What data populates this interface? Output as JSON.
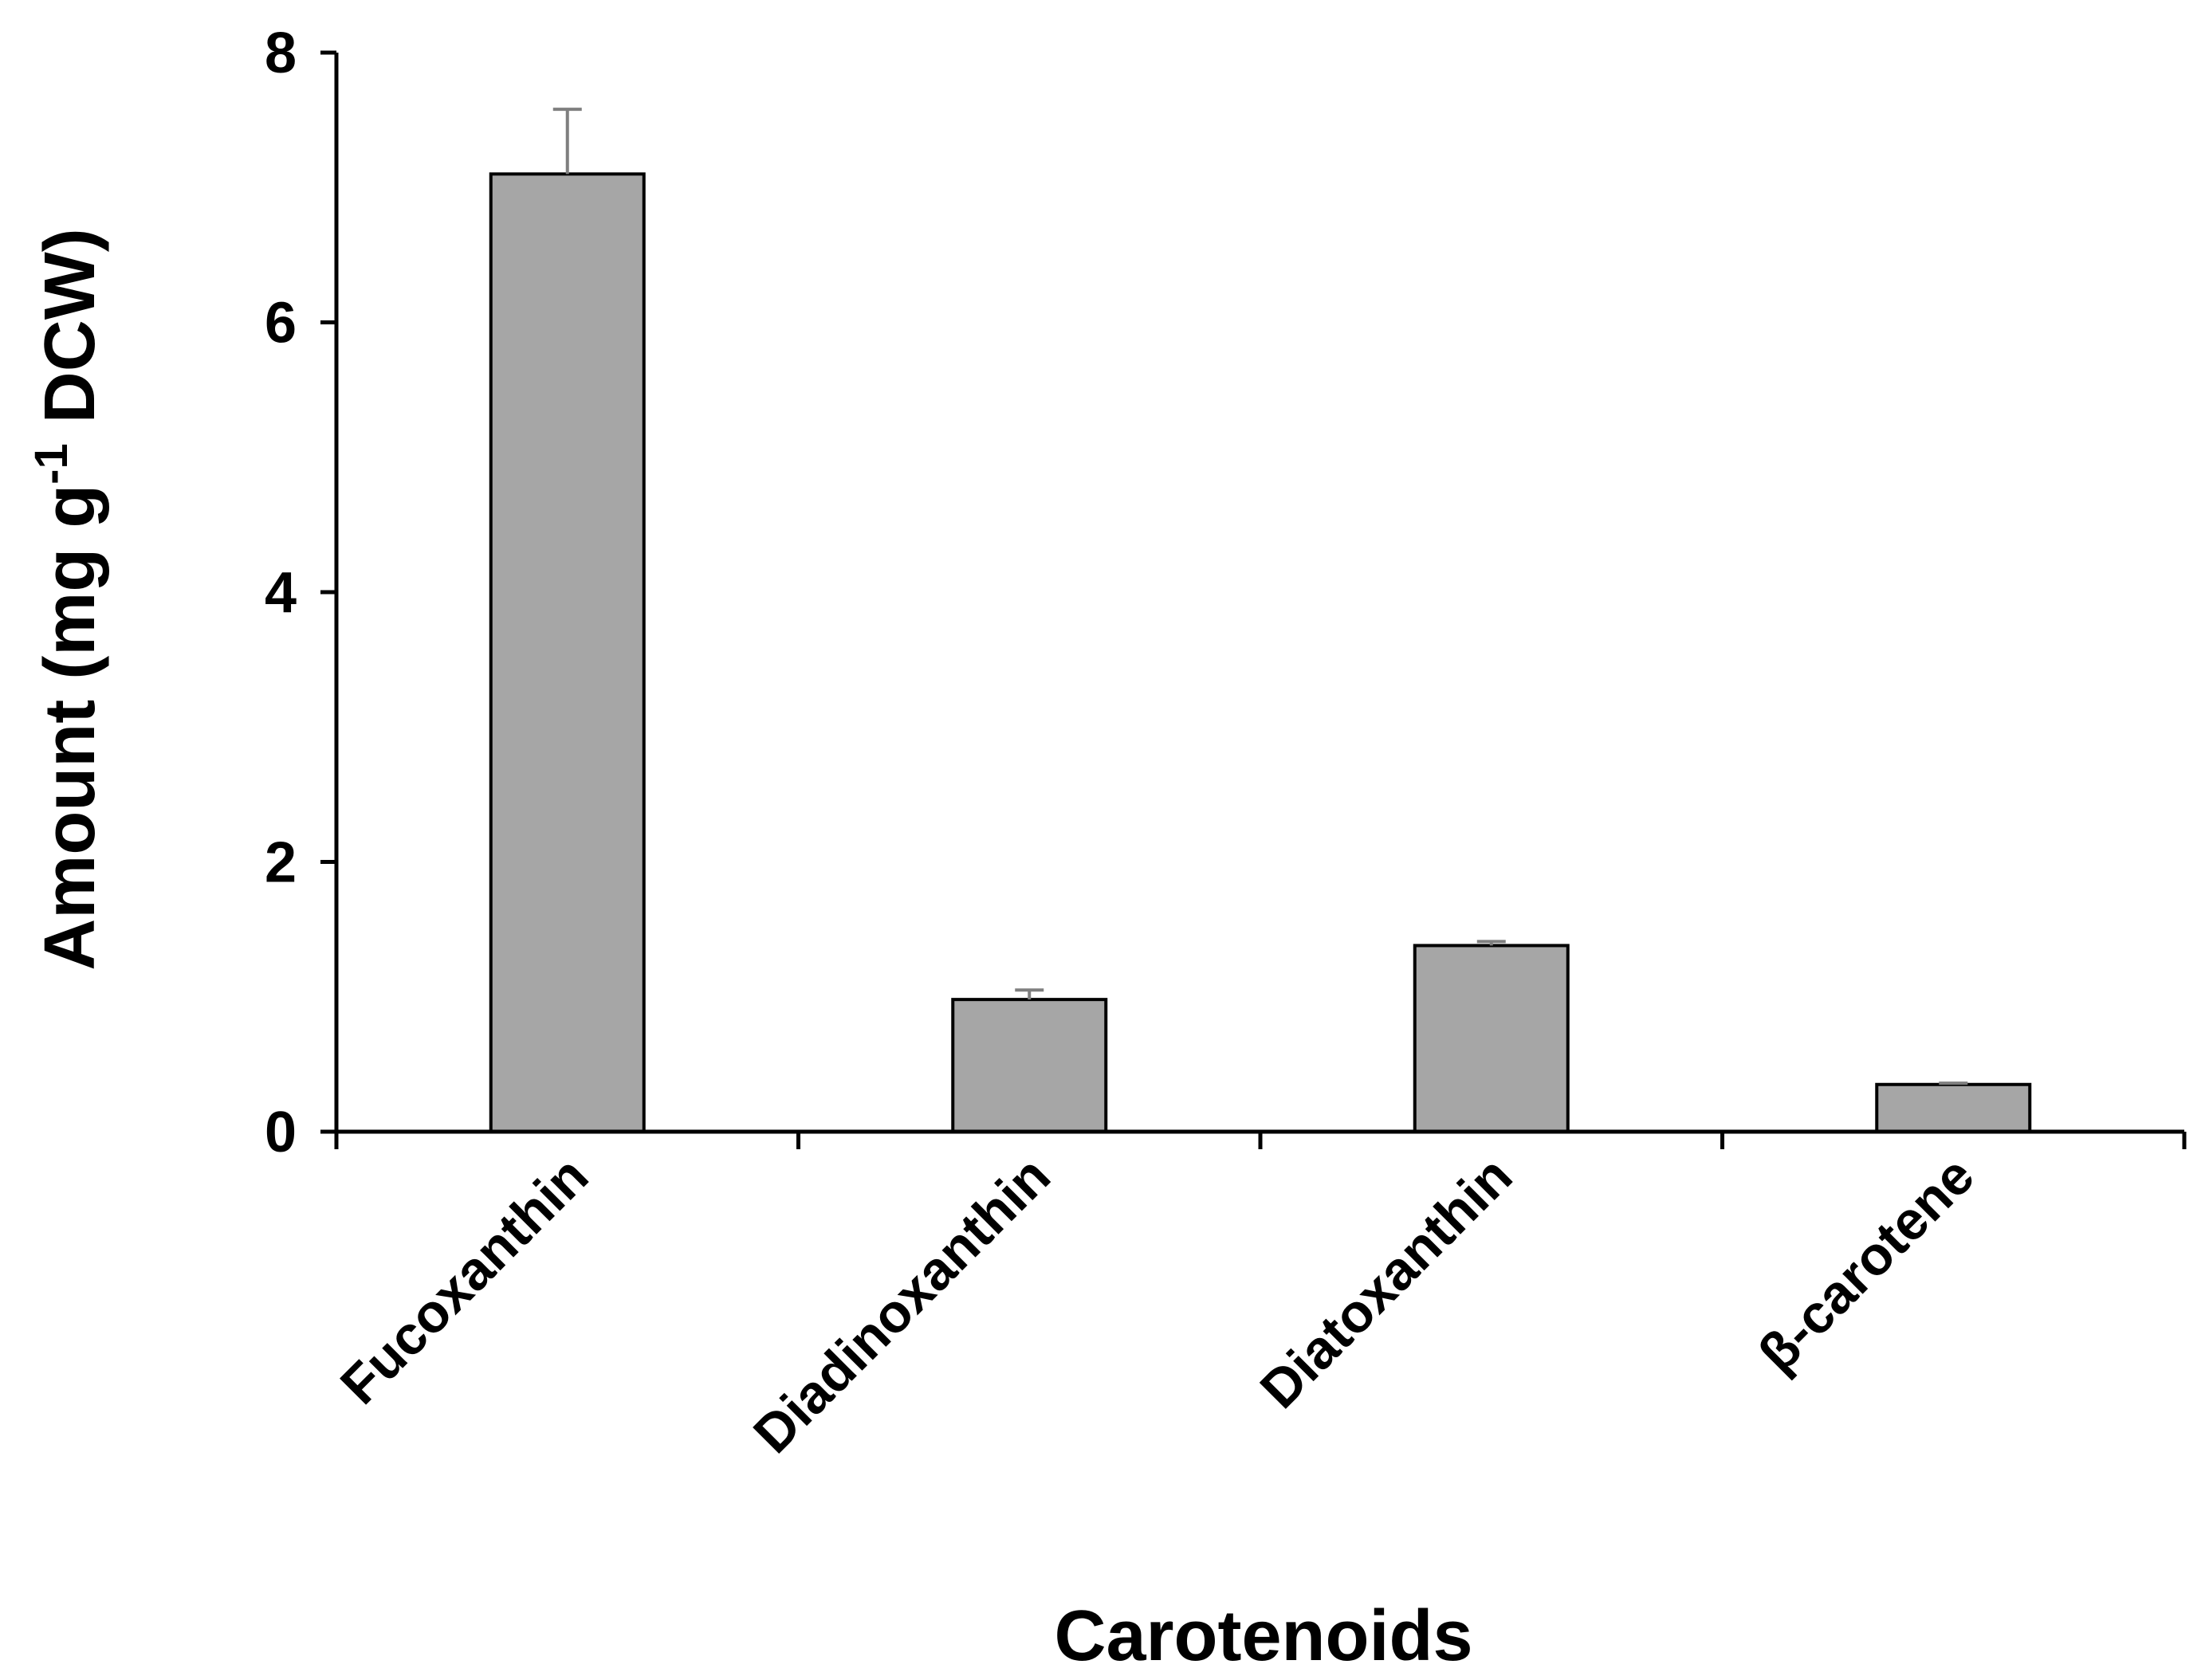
{
  "chart_data": {
    "type": "bar",
    "title": "",
    "xlabel": "Carotenoids",
    "ylabel": {
      "prefix": "Amount (mg g",
      "superscript": "-1",
      "suffix": " DCW)"
    },
    "categories": [
      "Fucoxanthin",
      "Diadinoxanthin",
      "Diatoxanthin",
      "β-carotene"
    ],
    "values": [
      7.1,
      0.98,
      1.38,
      0.35
    ],
    "error_bars": [
      0.48,
      0.07,
      0.03,
      0.01
    ],
    "ylim": [
      0,
      8
    ],
    "yticks": [
      0,
      2,
      4,
      6,
      8
    ],
    "grid": false,
    "legend": "none",
    "colors": {
      "bar_fill": "#a6a6a6",
      "bar_stroke": "#000000",
      "error_bar": "#7f7f7f",
      "axis": "#000000"
    }
  }
}
